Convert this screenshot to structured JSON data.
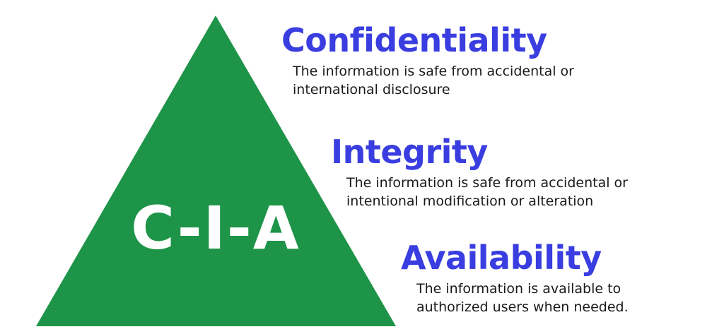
{
  "triangle": {
    "label": "C-I-A",
    "color": "#1e9448"
  },
  "accent_color": "#3a3ee0",
  "items": [
    {
      "heading": "Confidentiality",
      "lines": [
        "The information is safe from accidental or",
        "international disclosure"
      ]
    },
    {
      "heading": "Integrity",
      "lines": [
        "The information is safe from accidental or",
        "intentional modification or alteration"
      ]
    },
    {
      "heading": "Availability",
      "lines": [
        "The information is available to",
        "authorized users when needed."
      ]
    }
  ]
}
